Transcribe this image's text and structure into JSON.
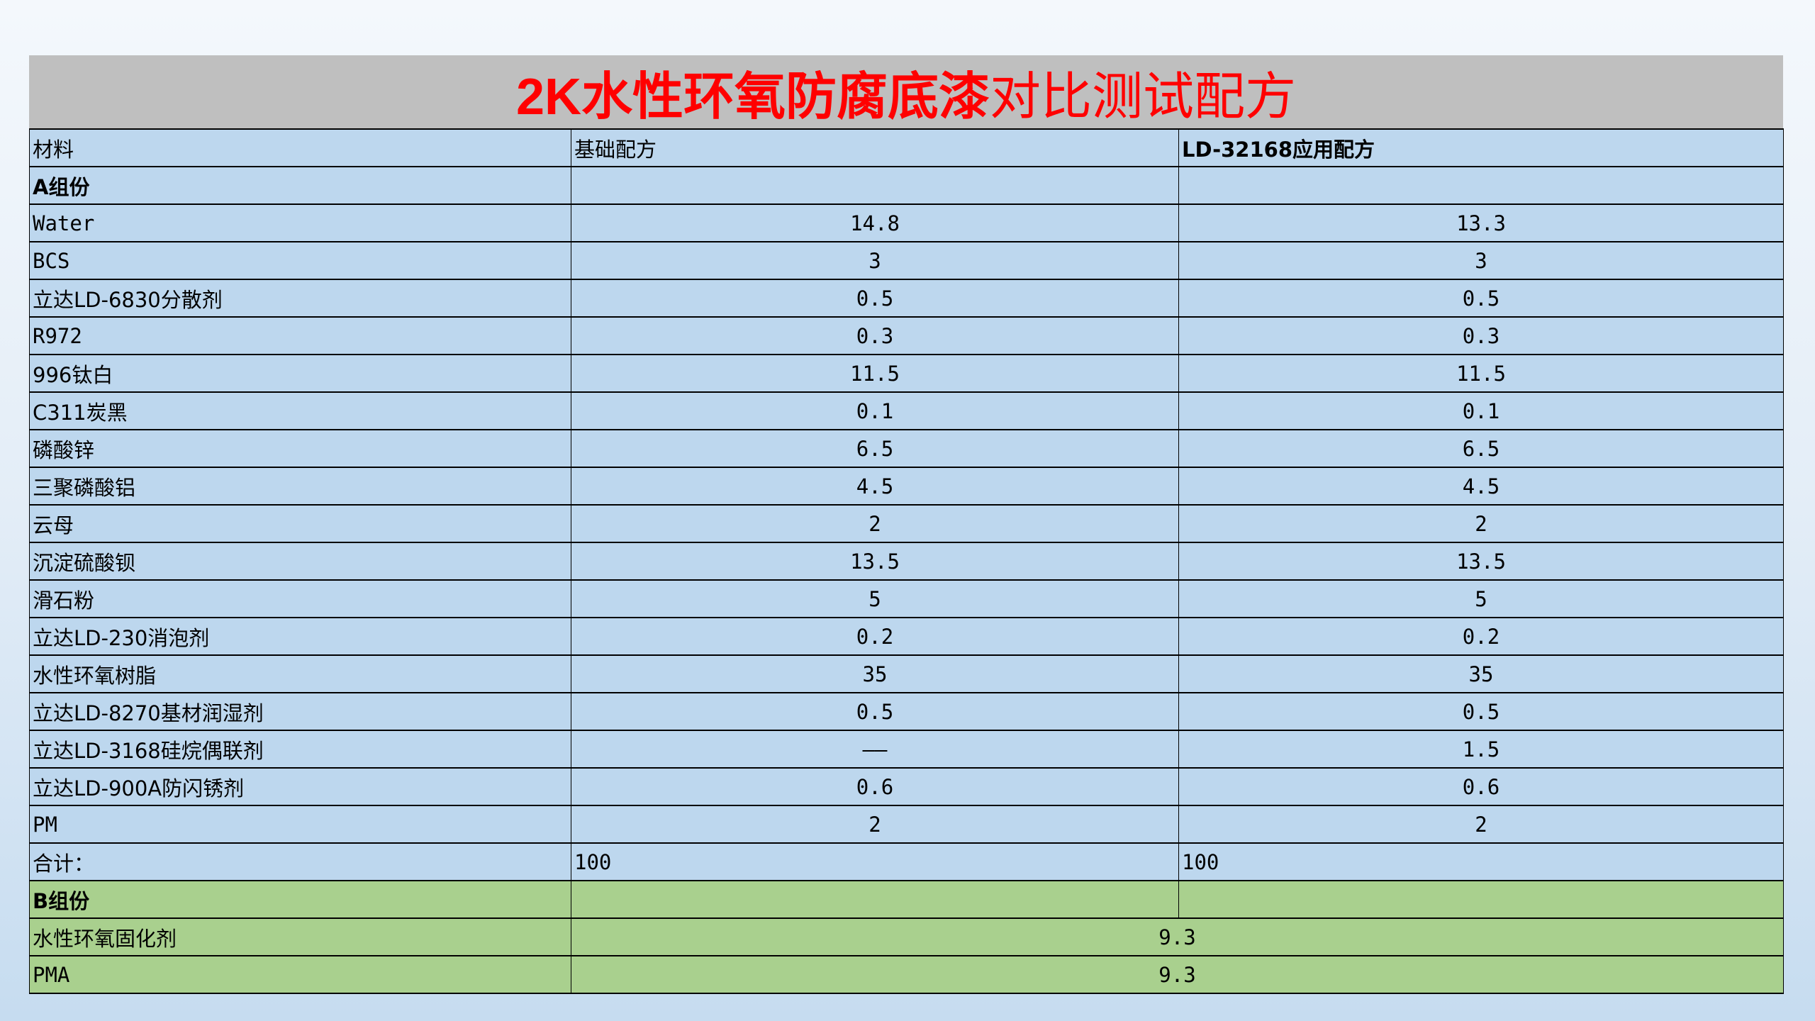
{
  "title": {
    "bold_part": "2K水性环氧防腐底漆",
    "normal_part": "对比测试配方",
    "color": "#ff0000"
  },
  "header": [
    "材料",
    "基础配方",
    "LD-32168应用配方"
  ],
  "section_a": "A组份",
  "rows_a": [
    {
      "name": "Water",
      "base": "14.8",
      "app": "13.3"
    },
    {
      "name": "BCS",
      "base": "3",
      "app": "3"
    },
    {
      "name": "立达LD-6830分散剂",
      "base": "0.5",
      "app": "0.5"
    },
    {
      "name": "R972",
      "base": "0.3",
      "app": "0.3"
    },
    {
      "name": "996钛白",
      "base": "11.5",
      "app": "11.5"
    },
    {
      "name": "C311炭黑",
      "base": "0.1",
      "app": "0.1"
    },
    {
      "name": "磷酸锌",
      "base": "6.5",
      "app": "6.5"
    },
    {
      "name": "三聚磷酸铝",
      "base": "4.5",
      "app": "4.5"
    },
    {
      "name": "云母",
      "base": "2",
      "app": "2"
    },
    {
      "name": "沉淀硫酸钡",
      "base": "13.5",
      "app": "13.5"
    },
    {
      "name": "滑石粉",
      "base": "5",
      "app": "5"
    },
    {
      "name": "立达LD-230消泡剂",
      "base": "0.2",
      "app": "0.2"
    },
    {
      "name": "水性环氧树脂",
      "base": "35",
      "app": "35"
    },
    {
      "name": "立达LD-8270基材润湿剂",
      "base": "0.5",
      "app": "0.5"
    },
    {
      "name": "立达LD-3168硅烷偶联剂",
      "base": "——",
      "app": "1.5"
    },
    {
      "name": "立达LD-900A防闪锈剂",
      "base": "0.6",
      "app": "0.6"
    },
    {
      "name": "PM",
      "base": "2",
      "app": "2"
    }
  ],
  "total": {
    "label": "合计：",
    "base": "100",
    "app": "100"
  },
  "section_b": "B组份",
  "rows_b": [
    {
      "name": "水性环氧固化剂",
      "value": "9.3"
    },
    {
      "name": "PMA",
      "value": "9.3"
    }
  ],
  "colors": {
    "title_band": "#bfbfbf",
    "a_rows": "#bdd7ee",
    "b_rows": "#a9d08e"
  }
}
